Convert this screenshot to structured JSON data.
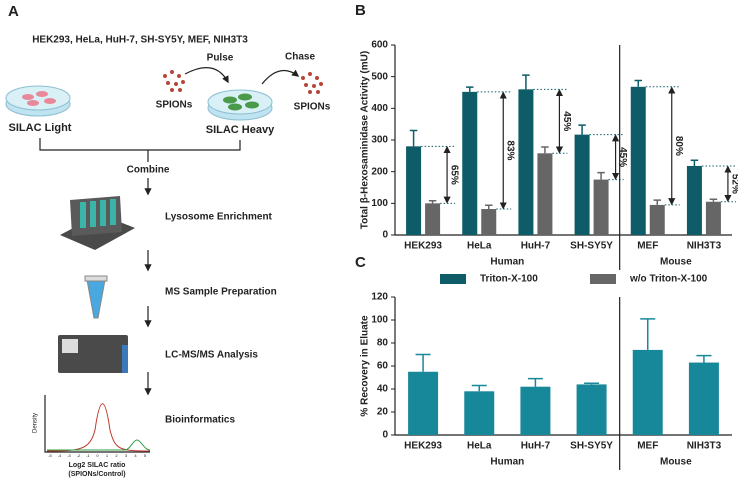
{
  "panel_a": {
    "label": "A",
    "cell_lines": "HEK293, HeLa, HuH-7, SH-SY5Y, MEF, NIH3T3",
    "pulse": "Pulse",
    "chase": "Chase",
    "spions_left": "SPIONs",
    "spions_right": "SPIONs",
    "silac_light": "SILAC Light",
    "silac_heavy": "SILAC Heavy",
    "steps": [
      "Combine",
      "Lysosome Enrichment",
      "MS Sample Preparation",
      "LC-MS/MS Analysis",
      "Bioinformatics"
    ],
    "plot": {
      "y_label": "Density",
      "x_label": "Log2 SILAC ratio",
      "x_sublabel": "(SPIONs/Control)",
      "xticks": [
        "-5",
        "-4",
        "-3",
        "-2",
        "-1",
        "0",
        "1",
        "2",
        "3",
        "4",
        "5"
      ]
    }
  },
  "chart_data": [
    {
      "type": "bar",
      "panel_label": "B",
      "y_label": "Total β-Hexosaminidase Activity (mU)",
      "categories": [
        "HEK293",
        "HeLa",
        "HuH-7",
        "SH-SY5Y",
        "MEF",
        "NIH3T3"
      ],
      "groups": [
        "Human",
        "Human",
        "Human",
        "Human",
        "Mouse",
        "Mouse"
      ],
      "series": [
        {
          "name": "Triton-X-100",
          "color": "#0d5c68",
          "values": [
            280,
            452,
            460,
            317,
            468,
            218
          ],
          "errors": [
            50,
            15,
            45,
            30,
            20,
            18
          ]
        },
        {
          "name": "w/o Triton-X-100",
          "color": "#666666",
          "values": [
            100,
            82,
            258,
            175,
            95,
            105
          ],
          "errors": [
            8,
            12,
            20,
            22,
            15,
            8
          ]
        }
      ],
      "annotations": [
        "65%",
        "83%",
        "45%",
        "45%",
        "80%",
        "52%"
      ],
      "ylim": [
        0,
        600
      ],
      "yticks": [
        0,
        100,
        200,
        300,
        400,
        500,
        600
      ],
      "legend": "bottom"
    },
    {
      "type": "bar",
      "panel_label": "C",
      "y_label": "% Recovery in Eluate",
      "categories": [
        "HEK293",
        "HeLa",
        "HuH-7",
        "SH-SY5Y",
        "MEF",
        "NIH3T3"
      ],
      "groups": [
        "Human",
        "Human",
        "Human",
        "Human",
        "Mouse",
        "Mouse"
      ],
      "color": "#17889a",
      "values": [
        55,
        38,
        42,
        44,
        74,
        63
      ],
      "errors": [
        15,
        5,
        7,
        1,
        27,
        6
      ],
      "ylim": [
        0,
        120
      ],
      "yticks": [
        0,
        20,
        40,
        60,
        80,
        100,
        120
      ]
    }
  ]
}
